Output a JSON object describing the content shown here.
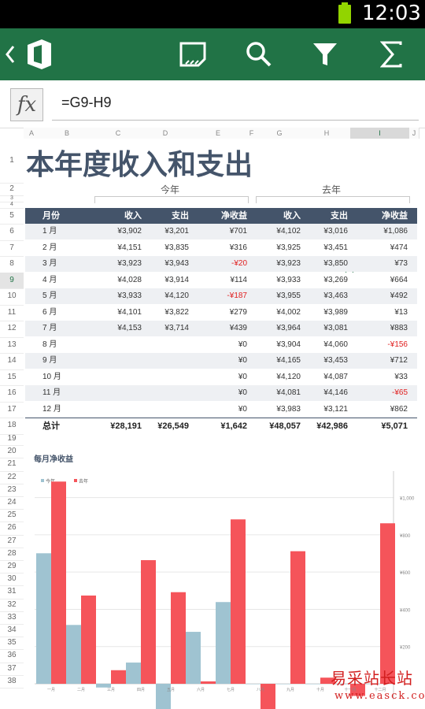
{
  "status_bar": {
    "time": "12:03",
    "battery_icon": "battery-icon"
  },
  "app_bar": {
    "icons": [
      "back-chevron-icon",
      "office-logo-icon",
      "present-icon",
      "search-icon",
      "filter-icon",
      "sum-icon"
    ],
    "color": "#217346"
  },
  "formula_bar": {
    "fx_label": "fx",
    "formula": "=G9-H9"
  },
  "columns": [
    "A",
    "B",
    "C",
    "D",
    "E",
    "F",
    "G",
    "H",
    "I",
    "J"
  ],
  "selected_column": "I",
  "selected_row": "9",
  "rows": [
    "1",
    "2",
    "3",
    "4",
    "5",
    "6",
    "7",
    "8",
    "9",
    "10",
    "11",
    "12",
    "13",
    "14",
    "15",
    "16",
    "17",
    "18",
    "19",
    "20",
    "21",
    "22",
    "23",
    "24",
    "25",
    "26",
    "27",
    "28",
    "29",
    "30",
    "31",
    "32",
    "33",
    "34",
    "35",
    "36",
    "37",
    "38"
  ],
  "sheet": {
    "title": "本年度收入和支出",
    "group_this_year": "今年",
    "group_last_year": "去年",
    "headers": [
      "月份",
      "收入",
      "支出",
      "净收益",
      "收入",
      "支出",
      "净收益"
    ],
    "data": [
      [
        "1 月",
        "¥3,902",
        "¥3,201",
        "¥701",
        "¥4,102",
        "¥3,016",
        "¥1,086"
      ],
      [
        "2 月",
        "¥4,151",
        "¥3,835",
        "¥316",
        "¥3,925",
        "¥3,451",
        "¥474"
      ],
      [
        "3 月",
        "¥3,923",
        "¥3,943",
        "-¥20",
        "¥3,923",
        "¥3,850",
        "¥73"
      ],
      [
        "4 月",
        "¥4,028",
        "¥3,914",
        "¥114",
        "¥3,933",
        "¥3,269",
        "¥664"
      ],
      [
        "5 月",
        "¥3,933",
        "¥4,120",
        "-¥187",
        "¥3,955",
        "¥3,463",
        "¥492"
      ],
      [
        "6 月",
        "¥4,101",
        "¥3,822",
        "¥279",
        "¥4,002",
        "¥3,989",
        "¥13"
      ],
      [
        "7 月",
        "¥4,153",
        "¥3,714",
        "¥439",
        "¥3,964",
        "¥3,081",
        "¥883"
      ],
      [
        "8 月",
        "",
        "",
        "¥0",
        "¥3,904",
        "¥4,060",
        "-¥156"
      ],
      [
        "9 月",
        "",
        "",
        "¥0",
        "¥4,165",
        "¥3,453",
        "¥712"
      ],
      [
        "10 月",
        "",
        "",
        "¥0",
        "¥4,120",
        "¥4,087",
        "¥33"
      ],
      [
        "11 月",
        "",
        "",
        "¥0",
        "¥4,081",
        "¥4,146",
        "-¥65"
      ],
      [
        "12 月",
        "",
        "",
        "¥0",
        "¥3,983",
        "¥3,121",
        "¥862"
      ]
    ],
    "total": [
      "总计",
      "¥28,191",
      "¥26,549",
      "¥1,642",
      "¥48,057",
      "¥42,986",
      "¥5,071"
    ]
  },
  "chart_data": {
    "type": "bar",
    "title": "每月净收益",
    "legend": [
      "今年",
      "去年"
    ],
    "legend_position": "top-left",
    "categories": [
      "一月",
      "二月",
      "三月",
      "四月",
      "五月",
      "六月",
      "七月",
      "八月",
      "九月",
      "十月",
      "十一月",
      "十二月"
    ],
    "series": [
      {
        "name": "今年",
        "color": "#9fc3d1",
        "values": [
          701,
          316,
          -20,
          114,
          -187,
          279,
          439,
          0,
          0,
          0,
          0,
          0
        ]
      },
      {
        "name": "去年",
        "color": "#f5545a",
        "values": [
          1086,
          474,
          73,
          664,
          492,
          13,
          883,
          -156,
          712,
          33,
          -65,
          862
        ]
      }
    ],
    "y_ticks": [
      "¥1,000",
      "¥800",
      "¥600",
      "¥400",
      "¥200"
    ],
    "ylim": [
      -200,
      1100
    ],
    "grid": true
  },
  "watermark": {
    "line1": "易采站长站",
    "line2": "www.easck.com"
  }
}
